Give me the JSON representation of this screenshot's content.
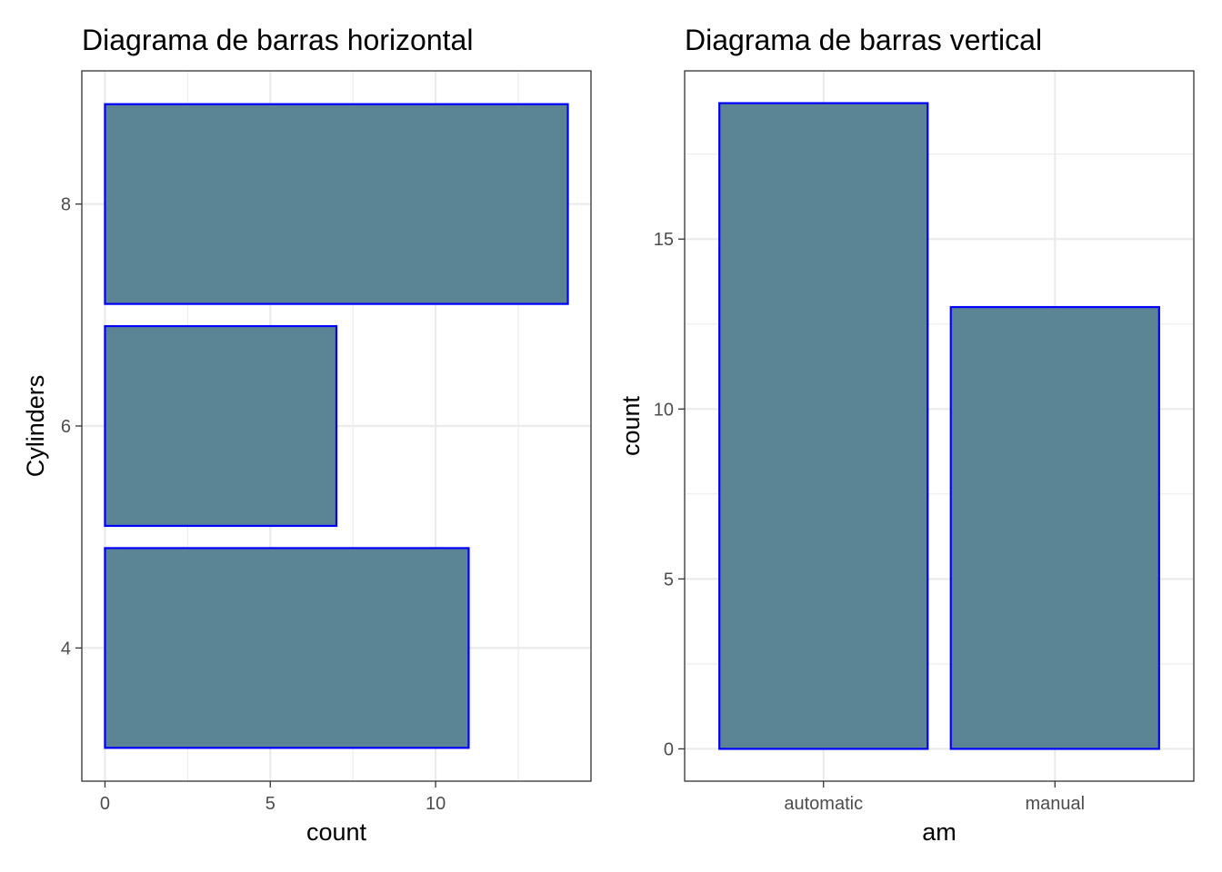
{
  "colors": {
    "bar_fill": "#5b8494",
    "bar_border": "#0000ff",
    "grid": "#ebebeb",
    "panel_border": "#333333",
    "tick_label": "#4d4d4d"
  },
  "chart_data": [
    {
      "type": "bar",
      "orientation": "horizontal",
      "title": "Diagrama de barras horizontal",
      "xlabel": "count",
      "ylabel": "Cylinders",
      "categories": [
        "4",
        "6",
        "8"
      ],
      "values": [
        11,
        7,
        14
      ],
      "xlim": [
        -0.7,
        14.7
      ],
      "xticks": [
        0,
        5,
        10
      ],
      "yticks": [
        4,
        6,
        8
      ],
      "grid": true
    },
    {
      "type": "bar",
      "orientation": "vertical",
      "title": "Diagrama de barras vertical",
      "xlabel": "am",
      "ylabel": "count",
      "categories": [
        "automatic",
        "manual"
      ],
      "values": [
        19,
        13
      ],
      "ylim": [
        -0.95,
        19.95
      ],
      "yticks": [
        0,
        5,
        10,
        15
      ],
      "grid": true
    }
  ]
}
